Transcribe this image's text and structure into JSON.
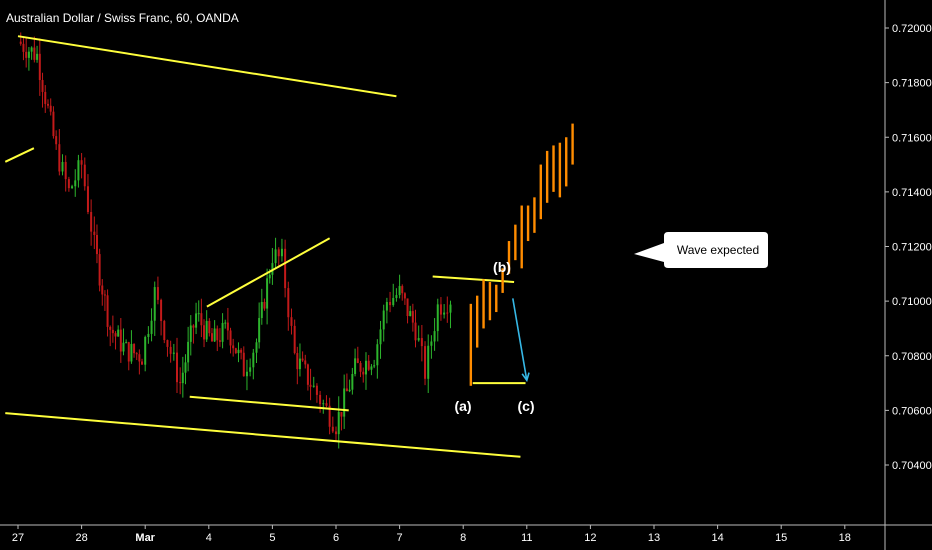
{
  "header": {
    "symbol_title": "Australian Dollar / Swiss Franc, 60, OANDA"
  },
  "colors": {
    "background": "#000000",
    "candle_up": "#2db52d",
    "candle_down": "#c31a1a",
    "trendline": "#ffff3c",
    "projection": "#ff8c00",
    "arrow": "#36b8e6",
    "axis_text": "#ffffff",
    "callout_bg": "#ffffff",
    "callout_text": "#000000"
  },
  "chart_data": {
    "type": "candlestick",
    "x_tick_labels": [
      "27",
      "28",
      "Mar",
      "4",
      "5",
      "6",
      "7",
      "8",
      "11",
      "12",
      "13",
      "14",
      "15",
      "18"
    ],
    "y_tick_labels": [
      "0.72000",
      "0.71800",
      "0.71600",
      "0.71400",
      "0.71200",
      "0.71000",
      "0.70800",
      "0.70600",
      "0.70400"
    ],
    "ylim": [
      0.7026,
      0.7217
    ],
    "grid": false,
    "annotations": {
      "wave_a": "(a)",
      "wave_b": "(b)",
      "wave_c": "(c)",
      "callout": "Wave expected"
    },
    "price_path": [
      {
        "t": 0.0,
        "p": 0.7195
      },
      {
        "t": 0.3,
        "p": 0.719
      },
      {
        "t": 0.6,
        "p": 0.7155
      },
      {
        "t": 0.8,
        "p": 0.714
      },
      {
        "t": 1.0,
        "p": 0.715
      },
      {
        "t": 1.2,
        "p": 0.712
      },
      {
        "t": 1.45,
        "p": 0.709
      },
      {
        "t": 1.7,
        "p": 0.7082
      },
      {
        "t": 1.95,
        "p": 0.708
      },
      {
        "t": 2.15,
        "p": 0.7103
      },
      {
        "t": 2.35,
        "p": 0.7085
      },
      {
        "t": 2.55,
        "p": 0.707
      },
      {
        "t": 2.8,
        "p": 0.7095
      },
      {
        "t": 3.05,
        "p": 0.7085
      },
      {
        "t": 3.3,
        "p": 0.709
      },
      {
        "t": 3.55,
        "p": 0.7075
      },
      {
        "t": 3.75,
        "p": 0.7085
      },
      {
        "t": 4.0,
        "p": 0.7117
      },
      {
        "t": 4.15,
        "p": 0.7115
      },
      {
        "t": 4.35,
        "p": 0.708
      },
      {
        "t": 4.6,
        "p": 0.707
      },
      {
        "t": 4.8,
        "p": 0.7062
      },
      {
        "t": 5.0,
        "p": 0.7055
      },
      {
        "t": 5.3,
        "p": 0.7075
      },
      {
        "t": 5.6,
        "p": 0.708
      },
      {
        "t": 5.8,
        "p": 0.71
      },
      {
        "t": 6.0,
        "p": 0.7103
      },
      {
        "t": 6.25,
        "p": 0.709
      },
      {
        "t": 6.4,
        "p": 0.7074
      },
      {
        "t": 6.6,
        "p": 0.7098
      },
      {
        "t": 6.8,
        "p": 0.7101
      }
    ],
    "projection_bars": [
      {
        "t": 7.12,
        "low": 0.7069,
        "high": 0.7099
      },
      {
        "t": 7.22,
        "low": 0.7083,
        "high": 0.7102
      },
      {
        "t": 7.32,
        "low": 0.709,
        "high": 0.7108
      },
      {
        "t": 7.42,
        "low": 0.7093,
        "high": 0.7107
      },
      {
        "t": 7.52,
        "low": 0.7096,
        "high": 0.7106
      },
      {
        "t": 7.62,
        "low": 0.7103,
        "high": 0.7112
      },
      {
        "t": 7.72,
        "low": 0.711,
        "high": 0.7122
      },
      {
        "t": 7.82,
        "low": 0.7115,
        "high": 0.7128
      },
      {
        "t": 7.92,
        "low": 0.7112,
        "high": 0.7135
      },
      {
        "t": 8.02,
        "low": 0.7122,
        "high": 0.7135
      },
      {
        "t": 8.12,
        "low": 0.7125,
        "high": 0.7138
      },
      {
        "t": 8.22,
        "low": 0.713,
        "high": 0.715
      },
      {
        "t": 8.32,
        "low": 0.7136,
        "high": 0.7155
      },
      {
        "t": 8.42,
        "low": 0.714,
        "high": 0.7157
      },
      {
        "t": 8.52,
        "low": 0.7138,
        "high": 0.7158
      },
      {
        "t": 8.62,
        "low": 0.7142,
        "high": 0.716
      },
      {
        "t": 8.72,
        "low": 0.715,
        "high": 0.7165
      }
    ],
    "trendlines": [
      {
        "name": "upper-channel-line",
        "x1": 0.0,
        "y1": 0.7197,
        "x2": 5.95,
        "y2": 0.7175
      },
      {
        "name": "left-stub-line",
        "x1": -0.2,
        "y1": 0.7151,
        "x2": 0.25,
        "y2": 0.7156
      },
      {
        "name": "triangle-upper-line",
        "x1": 2.97,
        "y1": 0.7098,
        "x2": 4.9,
        "y2": 0.7123
      },
      {
        "name": "triangle-lower-line",
        "x1": 2.7,
        "y1": 0.7065,
        "x2": 5.2,
        "y2": 0.706
      },
      {
        "name": "lower-channel-line",
        "x1": -0.2,
        "y1": 0.7059,
        "x2": 7.9,
        "y2": 0.7043
      },
      {
        "name": "wave-b-top-line",
        "x1": 6.52,
        "y1": 0.7109,
        "x2": 7.8,
        "y2": 0.7107
      },
      {
        "name": "wave-a-bottom-line",
        "x1": 7.15,
        "y1": 0.707,
        "x2": 7.98,
        "y2": 0.707
      }
    ],
    "arrow": {
      "x1": 7.78,
      "y1": 0.7101,
      "x2": 8.0,
      "y2": 0.7071
    }
  }
}
